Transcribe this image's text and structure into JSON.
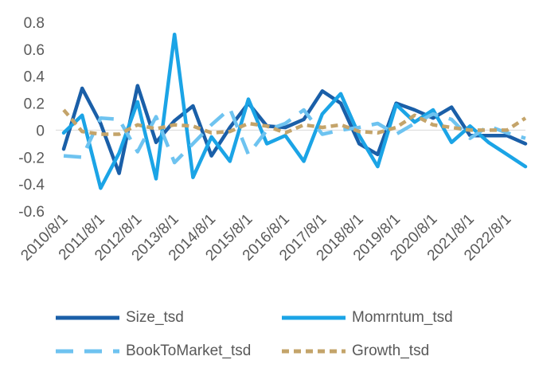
{
  "chart_data": {
    "type": "line",
    "title": "",
    "xlabel": "",
    "ylabel": "",
    "ylim": [
      -0.6,
      0.8
    ],
    "yticks": [
      0.8,
      0.6,
      0.4,
      0.2,
      0,
      -0.2,
      -0.4,
      -0.6
    ],
    "ytick_labels": [
      "0.8",
      "0.6",
      "0.4",
      "0.2",
      "0",
      "-0.2",
      "-0.4",
      "-0.6"
    ],
    "x_tick_labels": [
      "2010/8/1",
      "2011/8/1",
      "2012/8/1",
      "2013/8/1",
      "2014/8/1",
      "2015/8/1",
      "2016/8/1",
      "2017/8/1",
      "2018/8/1",
      "2019/8/1",
      "2020/8/1",
      "2021/8/1",
      "2022/8/1"
    ],
    "x": [
      0,
      0.5,
      1,
      1.5,
      2,
      2.5,
      3,
      3.5,
      4,
      4.5,
      5,
      5.5,
      6,
      6.5,
      7,
      7.5,
      8,
      8.5,
      9,
      9.5,
      10,
      10.5,
      11,
      11.5,
      12,
      12.5
    ],
    "grid": false,
    "legend_position": "bottom",
    "series": [
      {
        "name": "Size_tsd",
        "color": "#1a5fa8",
        "dash": "solid",
        "values": [
          -0.14,
          0.31,
          0.05,
          -0.32,
          0.33,
          -0.09,
          0.07,
          0.18,
          -0.19,
          0.02,
          0.2,
          0.03,
          0.02,
          0.08,
          0.29,
          0.2,
          -0.1,
          -0.18,
          0.2,
          0.15,
          0.09,
          0.17,
          -0.04,
          -0.04,
          -0.04,
          -0.1
        ]
      },
      {
        "name": "Momrntum_tsd",
        "color": "#1ba4e6",
        "dash": "solid",
        "values": [
          -0.02,
          0.11,
          -0.43,
          -0.17,
          0.21,
          -0.36,
          0.71,
          -0.35,
          -0.05,
          -0.23,
          0.23,
          -0.1,
          -0.04,
          -0.23,
          0.12,
          0.27,
          -0.04,
          -0.27,
          0.19,
          0.06,
          0.15,
          -0.09,
          0.03,
          -0.09,
          -0.18,
          -0.27
        ]
      },
      {
        "name": "BookToMarket_tsd",
        "color": "#6ec3f0",
        "dash": "long-dash",
        "values": [
          -0.19,
          -0.2,
          0.09,
          0.08,
          -0.16,
          0.1,
          -0.24,
          -0.1,
          0.04,
          0.16,
          -0.18,
          0.0,
          0.05,
          0.15,
          -0.03,
          0.0,
          0.02,
          0.05,
          -0.03,
          0.05,
          0.12,
          0.08,
          -0.06,
          0.03,
          -0.02,
          -0.06
        ]
      },
      {
        "name": "Growth_tsd",
        "color": "#c4a46a",
        "dash": "short-dash",
        "values": [
          0.15,
          -0.01,
          -0.03,
          -0.03,
          0.04,
          0.01,
          0.04,
          0.03,
          -0.02,
          -0.01,
          0.05,
          0.03,
          -0.02,
          0.04,
          0.02,
          0.04,
          -0.01,
          -0.02,
          0.02,
          0.11,
          0.04,
          0.02,
          0.0,
          0.0,
          0.0,
          0.09
        ]
      }
    ]
  }
}
